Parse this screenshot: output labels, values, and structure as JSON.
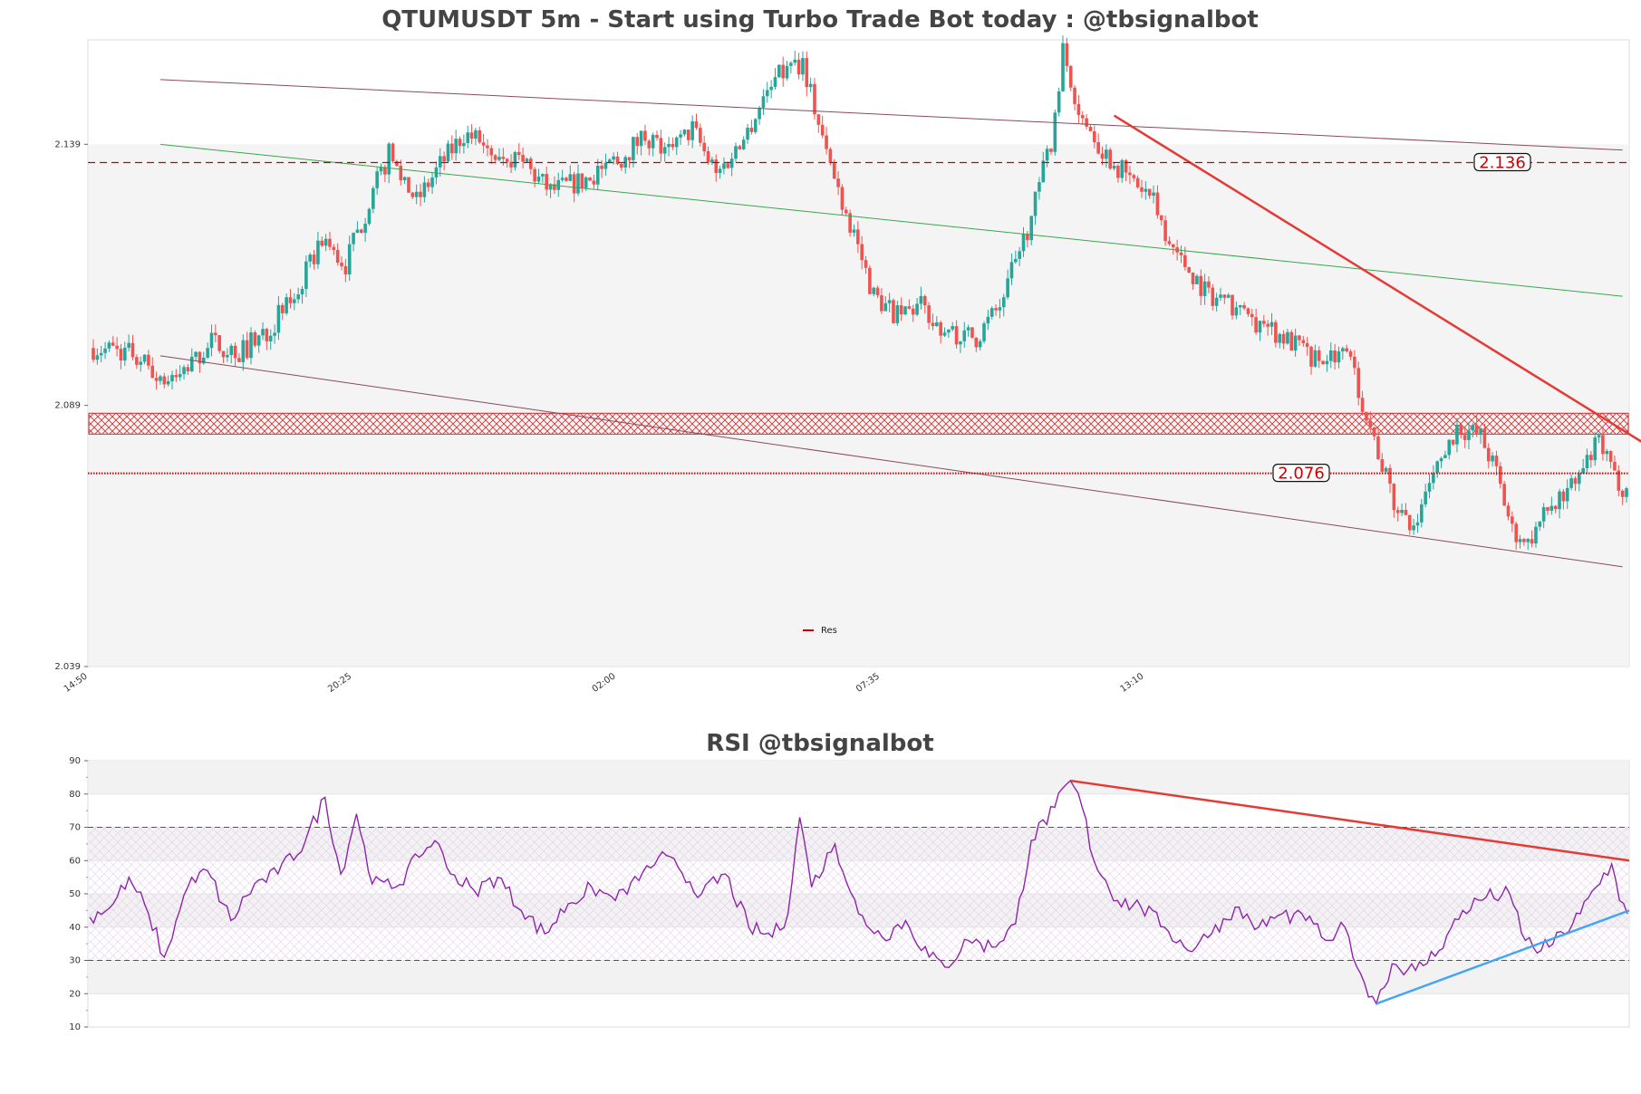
{
  "chart_data": [
    {
      "type": "candlestick",
      "title": "QTUMUSDT 5m - Start using Turbo Trade Bot today : @tbsignalbot",
      "ylim": [
        2.039,
        2.159
      ],
      "y_ticks": [
        "2.039",
        "2.089",
        "2.139"
      ],
      "x_ticks": [
        "14:50",
        "20:25",
        "02:00",
        "07:35",
        "13:10"
      ],
      "legend": {
        "entries": [
          "Res"
        ],
        "placement": "lower-center"
      },
      "colors": {
        "up": "#26a69a",
        "down": "#ef5350",
        "channel": "#8b4a5a",
        "midline": "#3aa64a",
        "trend": "#e53935",
        "level": "#cc0000",
        "zone": "#f4f4f4"
      },
      "levels": [
        {
          "label": "2.136",
          "value": 2.1355,
          "style": "dashed"
        },
        {
          "label": "2.076",
          "value": 2.076,
          "style": "dotted"
        }
      ],
      "resistance_zone": {
        "from": 2.0835,
        "to": 2.0875
      },
      "shaded_zone": {
        "from": 2.039,
        "to": 2.139
      },
      "anchors": [
        {
          "i": 0,
          "c": 2.1
        },
        {
          "i": 10,
          "c": 2.099
        },
        {
          "i": 16,
          "c": 2.095
        },
        {
          "i": 20,
          "c": 2.093
        },
        {
          "i": 25,
          "c": 2.097
        },
        {
          "i": 30,
          "c": 2.101
        },
        {
          "i": 37,
          "c": 2.099
        },
        {
          "i": 45,
          "c": 2.104
        },
        {
          "i": 52,
          "c": 2.111
        },
        {
          "i": 58,
          "c": 2.121
        },
        {
          "i": 64,
          "c": 2.116
        },
        {
          "i": 70,
          "c": 2.128
        },
        {
          "i": 75,
          "c": 2.137
        },
        {
          "i": 82,
          "c": 2.128
        },
        {
          "i": 88,
          "c": 2.135
        },
        {
          "i": 94,
          "c": 2.141
        },
        {
          "i": 100,
          "c": 2.139
        },
        {
          "i": 108,
          "c": 2.136
        },
        {
          "i": 116,
          "c": 2.13
        },
        {
          "i": 124,
          "c": 2.132
        },
        {
          "i": 132,
          "c": 2.135
        },
        {
          "i": 140,
          "c": 2.141
        },
        {
          "i": 146,
          "c": 2.137
        },
        {
          "i": 152,
          "c": 2.142
        },
        {
          "i": 158,
          "c": 2.133
        },
        {
          "i": 165,
          "c": 2.14
        },
        {
          "i": 172,
          "c": 2.151
        },
        {
          "i": 180,
          "c": 2.155
        },
        {
          "i": 186,
          "c": 2.137
        },
        {
          "i": 192,
          "c": 2.124
        },
        {
          "i": 198,
          "c": 2.11
        },
        {
          "i": 204,
          "c": 2.106
        },
        {
          "i": 210,
          "c": 2.108
        },
        {
          "i": 216,
          "c": 2.103
        },
        {
          "i": 224,
          "c": 2.102
        },
        {
          "i": 230,
          "c": 2.108
        },
        {
          "i": 238,
          "c": 2.125
        },
        {
          "i": 243,
          "c": 2.14
        },
        {
          "i": 246,
          "c": 2.157
        },
        {
          "i": 250,
          "c": 2.146
        },
        {
          "i": 256,
          "c": 2.138
        },
        {
          "i": 262,
          "c": 2.133
        },
        {
          "i": 268,
          "c": 2.129
        },
        {
          "i": 275,
          "c": 2.118
        },
        {
          "i": 282,
          "c": 2.111
        },
        {
          "i": 290,
          "c": 2.107
        },
        {
          "i": 298,
          "c": 2.104
        },
        {
          "i": 306,
          "c": 2.1
        },
        {
          "i": 312,
          "c": 2.097
        },
        {
          "i": 318,
          "c": 2.099
        },
        {
          "i": 322,
          "c": 2.09
        },
        {
          "i": 326,
          "c": 2.08
        },
        {
          "i": 330,
          "c": 2.07
        },
        {
          "i": 334,
          "c": 2.065
        },
        {
          "i": 340,
          "c": 2.075
        },
        {
          "i": 346,
          "c": 2.085
        },
        {
          "i": 352,
          "c": 2.083
        },
        {
          "i": 356,
          "c": 2.076
        },
        {
          "i": 360,
          "c": 2.065
        },
        {
          "i": 364,
          "c": 2.063
        },
        {
          "i": 370,
          "c": 2.07
        },
        {
          "i": 376,
          "c": 2.074
        },
        {
          "i": 382,
          "c": 2.082
        },
        {
          "i": 386,
          "c": 2.075
        },
        {
          "i": 389,
          "c": 2.073
        }
      ]
    },
    {
      "type": "line",
      "title": "RSI @tbsignalbot",
      "ylim": [
        10,
        90
      ],
      "y_ticks": [
        "10",
        "20",
        "30",
        "40",
        "50",
        "60",
        "70",
        "80",
        "90"
      ],
      "thresholds": [
        30,
        70
      ],
      "colors": {
        "rsi": "#8e24aa",
        "resistance": "#e53935",
        "support": "#42a5f5"
      },
      "rsi_anchors": [
        {
          "i": 0,
          "v": 43
        },
        {
          "i": 6,
          "v": 47
        },
        {
          "i": 10,
          "v": 55
        },
        {
          "i": 15,
          "v": 44
        },
        {
          "i": 19,
          "v": 31
        },
        {
          "i": 25,
          "v": 52
        },
        {
          "i": 30,
          "v": 57
        },
        {
          "i": 36,
          "v": 42
        },
        {
          "i": 42,
          "v": 53
        },
        {
          "i": 48,
          "v": 56
        },
        {
          "i": 55,
          "v": 66
        },
        {
          "i": 60,
          "v": 79
        },
        {
          "i": 64,
          "v": 56
        },
        {
          "i": 68,
          "v": 74
        },
        {
          "i": 72,
          "v": 53
        },
        {
          "i": 78,
          "v": 52
        },
        {
          "i": 84,
          "v": 61
        },
        {
          "i": 88,
          "v": 66
        },
        {
          "i": 92,
          "v": 56
        },
        {
          "i": 98,
          "v": 51
        },
        {
          "i": 104,
          "v": 55
        },
        {
          "i": 110,
          "v": 45
        },
        {
          "i": 116,
          "v": 38
        },
        {
          "i": 122,
          "v": 47
        },
        {
          "i": 128,
          "v": 52
        },
        {
          "i": 134,
          "v": 48
        },
        {
          "i": 140,
          "v": 54
        },
        {
          "i": 145,
          "v": 61
        },
        {
          "i": 150,
          "v": 58
        },
        {
          "i": 156,
          "v": 50
        },
        {
          "i": 162,
          "v": 56
        },
        {
          "i": 168,
          "v": 40
        },
        {
          "i": 174,
          "v": 37
        },
        {
          "i": 178,
          "v": 44
        },
        {
          "i": 181,
          "v": 73
        },
        {
          "i": 184,
          "v": 52
        },
        {
          "i": 190,
          "v": 65
        },
        {
          "i": 196,
          "v": 44
        },
        {
          "i": 202,
          "v": 37
        },
        {
          "i": 208,
          "v": 42
        },
        {
          "i": 214,
          "v": 31
        },
        {
          "i": 218,
          "v": 28
        },
        {
          "i": 224,
          "v": 36
        },
        {
          "i": 230,
          "v": 34
        },
        {
          "i": 236,
          "v": 41
        },
        {
          "i": 240,
          "v": 66
        },
        {
          "i": 246,
          "v": 76
        },
        {
          "i": 250,
          "v": 84
        },
        {
          "i": 253,
          "v": 76
        },
        {
          "i": 256,
          "v": 60
        },
        {
          "i": 262,
          "v": 48
        },
        {
          "i": 268,
          "v": 46
        },
        {
          "i": 274,
          "v": 40
        },
        {
          "i": 280,
          "v": 33
        },
        {
          "i": 286,
          "v": 38
        },
        {
          "i": 292,
          "v": 46
        },
        {
          "i": 298,
          "v": 40
        },
        {
          "i": 304,
          "v": 44
        },
        {
          "i": 310,
          "v": 42
        },
        {
          "i": 316,
          "v": 36
        },
        {
          "i": 320,
          "v": 40
        },
        {
          "i": 324,
          "v": 26
        },
        {
          "i": 328,
          "v": 17
        },
        {
          "i": 332,
          "v": 29
        },
        {
          "i": 338,
          "v": 27
        },
        {
          "i": 344,
          "v": 33
        },
        {
          "i": 350,
          "v": 45
        },
        {
          "i": 356,
          "v": 49
        },
        {
          "i": 362,
          "v": 50
        },
        {
          "i": 366,
          "v": 36
        },
        {
          "i": 370,
          "v": 33
        },
        {
          "i": 376,
          "v": 38
        },
        {
          "i": 380,
          "v": 44
        },
        {
          "i": 384,
          "v": 52
        },
        {
          "i": 388,
          "v": 59
        },
        {
          "i": 390,
          "v": 48
        },
        {
          "i": 392,
          "v": 44
        }
      ]
    }
  ]
}
